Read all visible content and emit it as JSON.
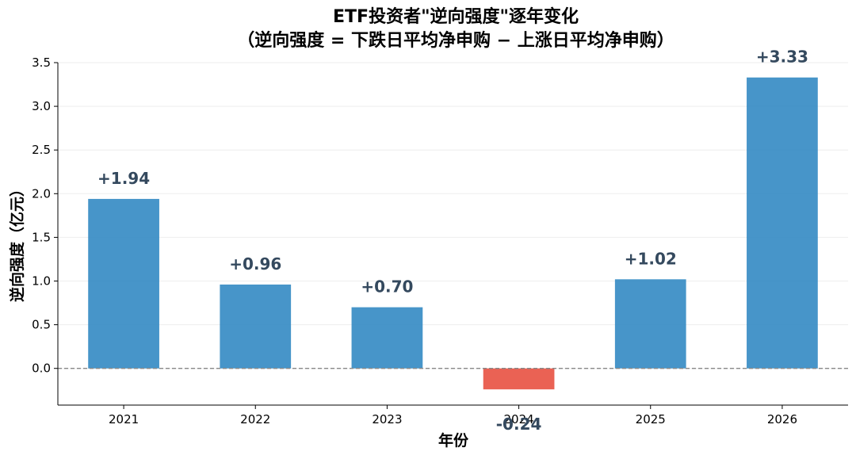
{
  "chart_data": {
    "type": "bar",
    "title": "ETF投资者\"逆向强度\"逐年变化",
    "subtitle": "（逆向强度 = 下跌日平均净申购 − 上涨日平均净申购）",
    "xlabel": "年份",
    "ylabel": "逆向强度（亿元）",
    "categories": [
      "2021",
      "2022",
      "2023",
      "2024",
      "2025",
      "2026"
    ],
    "values": [
      1.94,
      0.96,
      0.7,
      -0.24,
      1.02,
      3.33
    ],
    "data_labels": [
      "+1.94",
      "+0.96",
      "+0.70",
      "-0.24",
      "+1.02",
      "+3.33"
    ],
    "ylim": [
      -0.42,
      3.5
    ],
    "yticks": [
      0.0,
      0.5,
      1.0,
      1.5,
      2.0,
      2.5,
      3.0,
      3.5
    ],
    "ytick_labels": [
      "0.0",
      "0.5",
      "1.0",
      "1.5",
      "2.0",
      "2.5",
      "3.0",
      "3.5"
    ],
    "reference_line": 0,
    "grid": "horizontal",
    "colors": {
      "positive": "#2e86c1",
      "negative": "#e74c3c",
      "label": "#34495e",
      "zero_line": "#888888"
    }
  }
}
